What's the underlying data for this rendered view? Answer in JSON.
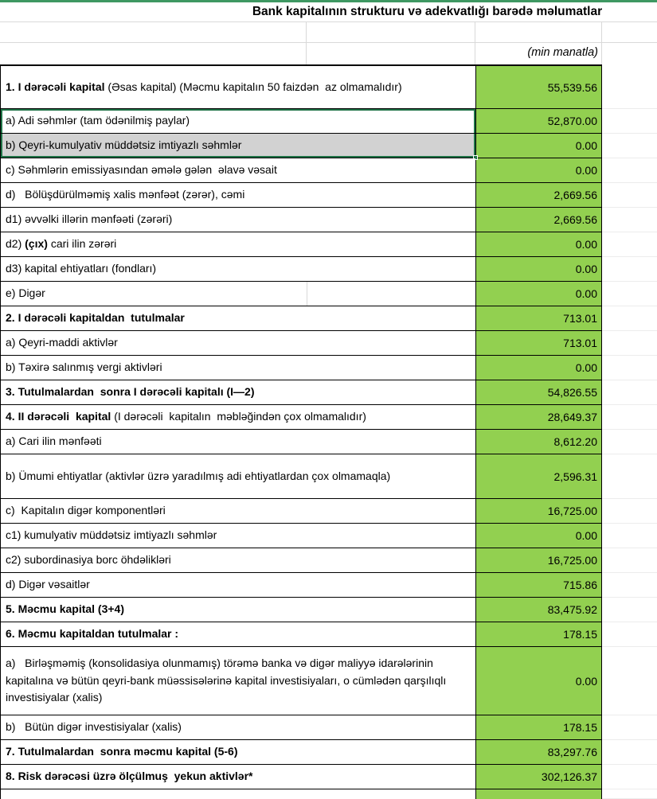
{
  "title": "Bank kapitalının strukturu və adekvatlığı barədə məlumatlar",
  "unit_note": "(min manatla)",
  "colors": {
    "value_fill": "#92D050",
    "gray_fill": "#D2D2D2",
    "selection_border": "#1F7246",
    "top_bar": "#3E9862",
    "gridline": "#D9D9D9",
    "cell_border": "#000000"
  },
  "table": {
    "rows": [
      {
        "id": "1",
        "h": 2,
        "indent": 0,
        "value": "55,539.56",
        "segments": [
          {
            "t": "1. I dərəcəli kapital ",
            "b": 1
          },
          {
            "t": "(Əsas kapital) (Məcmu kapitalın 50 faizdən  az olmamalıdır)",
            "b": 0
          }
        ]
      },
      {
        "id": "1a",
        "h": 1,
        "indent": 1,
        "value": "52,870.00",
        "selected": "top",
        "segments": [
          {
            "t": "a) Adi səhmlər (tam ödənilmiş paylar)",
            "b": 0
          }
        ]
      },
      {
        "id": "1b",
        "h": 1,
        "indent": 1,
        "value": "0.00",
        "label_bg": "#D2D2D2",
        "selected": "bottom",
        "segments": [
          {
            "t": "b) Qeyri-kumulyativ müddətsiz imtiyazlı səhmlər",
            "b": 0
          }
        ]
      },
      {
        "id": "1c",
        "h": 1,
        "indent": 1,
        "value": "0.00",
        "segments": [
          {
            "t": "c) Səhmlərin emissiyasından əmələ gələn  əlavə vəsait",
            "b": 0
          }
        ]
      },
      {
        "id": "1d",
        "h": 1,
        "indent": 1,
        "value": "2,669.56",
        "segments": [
          {
            "t": "d)   Bölüşdürülməmiş xalis mənfəət (zərər), cəmi",
            "b": 0
          }
        ]
      },
      {
        "id": "1d1",
        "h": 1,
        "indent": 2,
        "value": "2,669.56",
        "segments": [
          {
            "t": "d1) əvvəlki illərin mənfəəti (zərəri)",
            "b": 0
          }
        ]
      },
      {
        "id": "1d2",
        "h": 1,
        "indent": 2,
        "value": "0.00",
        "segments": [
          {
            "t": "d2) ",
            "b": 0
          },
          {
            "t": "(çıx)",
            "b": 1
          },
          {
            "t": " cari ilin zərəri",
            "b": 0
          }
        ]
      },
      {
        "id": "1d3",
        "h": 1,
        "indent": 2,
        "value": "0.00",
        "segments": [
          {
            "t": "d3) kapital ehtiyatları (fondları)",
            "b": 0
          }
        ]
      },
      {
        "id": "1e",
        "h": 1,
        "indent": 1,
        "value": "0.00",
        "split": true,
        "segments": [
          {
            "t": "e) Digər",
            "b": 0
          }
        ]
      },
      {
        "id": "2",
        "h": 1,
        "indent": 0,
        "value": "713.01",
        "segments": [
          {
            "t": "2. I dərəcəli kapitaldan  tutulmalar",
            "b": 1
          }
        ]
      },
      {
        "id": "2a",
        "h": 1,
        "indent": 1,
        "value": "713.01",
        "segments": [
          {
            "t": "a) Qeyri-maddi aktivlər",
            "b": 0
          }
        ]
      },
      {
        "id": "2b",
        "h": 1,
        "indent": 1,
        "value": "0.00",
        "segments": [
          {
            "t": "b) Təxirə salınmış vergi aktivləri",
            "b": 0
          }
        ]
      },
      {
        "id": "3",
        "h": 1,
        "indent": 0,
        "value": "54,826.55",
        "segments": [
          {
            "t": "3. Tutulmalardan  sonra I dərəcəli kapitalı (I—2)",
            "b": 1
          }
        ]
      },
      {
        "id": "4",
        "h": 1,
        "indent": 0,
        "value": "28,649.37",
        "segments": [
          {
            "t": "4. II dərəcəli  kapital ",
            "b": 1
          },
          {
            "t": "(I dərəcəli  kapitalın  məbləğindən çox olmamalıdır)",
            "b": 0
          }
        ]
      },
      {
        "id": "4a",
        "h": 1,
        "indent": 1,
        "value": "8,612.20",
        "segments": [
          {
            "t": "a) Cari ilin mənfəəti",
            "b": 0
          }
        ]
      },
      {
        "id": "4b",
        "h": 2,
        "indent": 1,
        "value": "2,596.31",
        "segments": [
          {
            "t": "b) Ümumi ehtiyatlar (aktivlər üzrə yaradılmış adi ehtiyatlardan çox olmamaqla)",
            "b": 0
          }
        ]
      },
      {
        "id": "4c",
        "h": 1,
        "indent": 1,
        "value": "16,725.00",
        "segments": [
          {
            "t": "c)  Kapitalın digər komponentləri",
            "b": 0
          }
        ]
      },
      {
        "id": "4c1",
        "h": 1,
        "indent": 2,
        "value": "0.00",
        "segments": [
          {
            "t": "c1) kumulyativ müddətsiz imtiyazlı səhmlər",
            "b": 0
          }
        ]
      },
      {
        "id": "4c2",
        "h": 1,
        "indent": 2,
        "value": "16,725.00",
        "segments": [
          {
            "t": "c2) subordinasiya borc öhdəlikləri",
            "b": 0
          }
        ]
      },
      {
        "id": "4d",
        "h": 1,
        "indent": 1,
        "value": "715.86",
        "segments": [
          {
            "t": "d) Digər vəsaitlər",
            "b": 0
          }
        ]
      },
      {
        "id": "5",
        "h": 1,
        "indent": 0,
        "value": "83,475.92",
        "segments": [
          {
            "t": "5. Məcmu kapital (3+4)",
            "b": 1
          }
        ]
      },
      {
        "id": "6",
        "h": 1,
        "indent": 0,
        "value": "178.15",
        "segments": [
          {
            "t": "6. Məcmu kapitaldan tutulmalar :",
            "b": 1
          }
        ]
      },
      {
        "id": "6a",
        "h": 3,
        "indent": 1,
        "value": "0.00",
        "segments": [
          {
            "t": "a)   Birləşməmiş (konsolidasiya olunmamış) törəmə banka və digər maliyyə idarələrinin kapitalına və bütün qeyri-bank müəssisələrinə kapital investisiyaları, o cümlədən qarşılıqlı investisiyalar (xalis)",
            "b": 0
          }
        ]
      },
      {
        "id": "6b",
        "h": 1,
        "indent": 1,
        "value": "178.15",
        "segments": [
          {
            "t": "b)   Bütün digər investisiyalar (xalis)",
            "b": 0
          }
        ]
      },
      {
        "id": "7",
        "h": 1,
        "indent": 0,
        "value": "83,297.76",
        "segments": [
          {
            "t": "7. Tutulmalardan  sonra məcmu kapital (5-6)",
            "b": 1
          }
        ]
      },
      {
        "id": "8",
        "h": 1,
        "indent": 0,
        "value": "302,126.37",
        "segments": [
          {
            "t": "8. Risk dərəcəsi üzrə ölçülmuş  yekun aktivlər*",
            "b": 1
          }
        ]
      }
    ]
  }
}
